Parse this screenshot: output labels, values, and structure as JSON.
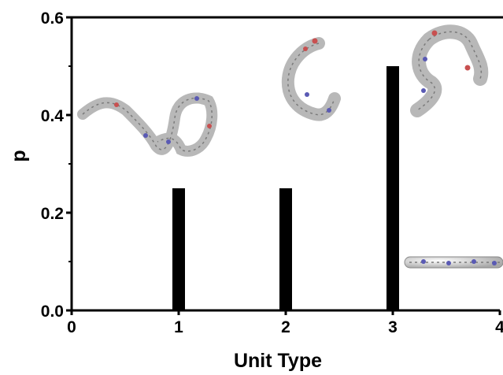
{
  "chart_data": {
    "type": "bar",
    "xlabel": "Unit Type",
    "ylabel": "p",
    "xlim": [
      0,
      4
    ],
    "ylim": [
      0,
      0.6
    ],
    "x_ticks": [
      "0",
      "1",
      "2",
      "3",
      "4"
    ],
    "y_ticks": [
      "0.0",
      "0.2",
      "0.4",
      "0.6"
    ],
    "x": [
      1,
      2,
      3
    ],
    "values": [
      0.25,
      0.25,
      0.5
    ],
    "grid": false,
    "bar_color": "#000000",
    "insets": [
      {
        "icon": "molecule-coiled-chain-image"
      },
      {
        "icon": "molecule-hook-chain-image"
      },
      {
        "icon": "molecule-folded-chain-image"
      },
      {
        "icon": "molecule-straight-chain-image"
      }
    ]
  }
}
